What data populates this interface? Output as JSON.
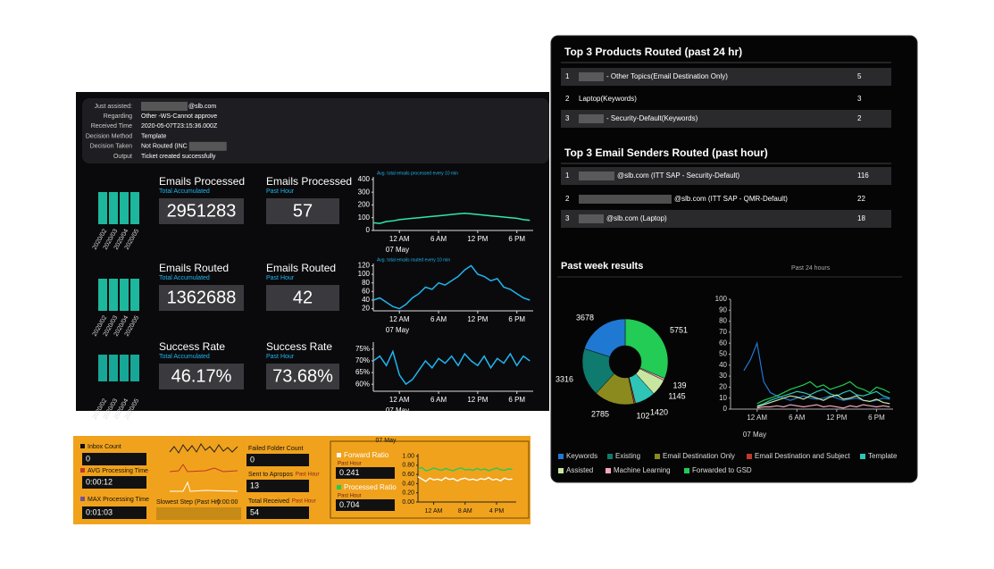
{
  "info": {
    "rows": [
      {
        "label": "Just assisted:",
        "value": "@slb.com"
      },
      {
        "label": "Regarding",
        "value": "Other -WS-Cannot approve"
      },
      {
        "label": "Received Time",
        "value": "2020-05-07T23:15:36.000Z"
      },
      {
        "label": "Decision Method",
        "value": "Template"
      },
      {
        "label": "Decision Taken",
        "value": "Not Routed (INC"
      },
      {
        "label": "Output",
        "value": "Ticket created successfully"
      }
    ]
  },
  "bar_dates": [
    "2020/02",
    "2020/03",
    "2020/04",
    "2020/05"
  ],
  "kpis": [
    {
      "title": "Emails Processed",
      "subtitle": "Total Accumulated",
      "value": "2951283"
    },
    {
      "title": "Emails Processed",
      "subtitle": "Past Hour",
      "value": "57"
    },
    {
      "title": "Emails Routed",
      "subtitle": "Total Accumulated",
      "value": "1362688"
    },
    {
      "title": "Emails Routed",
      "subtitle": "Past Hour",
      "value": "42"
    },
    {
      "title": "Success Rate",
      "subtitle": "Total Accumulated",
      "value": "46.17%"
    },
    {
      "title": "Success Rate",
      "subtitle": "Past Hour",
      "value": "73.68%"
    }
  ],
  "mini_charts": [
    {
      "type": "line",
      "legend": "Avg. total emails processed every 10 min",
      "date_label": "07 May",
      "x": [
        -4,
        -3,
        -2,
        -1,
        0,
        1,
        2,
        3,
        4,
        5,
        6,
        7,
        8,
        9,
        10,
        11,
        12,
        13,
        14,
        15,
        16,
        17,
        18,
        19,
        20
      ],
      "xlim": [
        -4,
        20.5
      ],
      "xticks": [
        {
          "value": 0,
          "label": "12 AM"
        },
        {
          "value": 6,
          "label": "6 AM"
        },
        {
          "value": 12,
          "label": "12 PM"
        },
        {
          "value": 18,
          "label": "6 PM"
        }
      ],
      "ylim": [
        0,
        420
      ],
      "yticks": [
        0,
        100,
        200,
        300,
        400
      ],
      "series": [
        {
          "color": "#2ee6b0",
          "values": [
            60,
            55,
            70,
            75,
            85,
            90,
            95,
            100,
            105,
            110,
            115,
            120,
            125,
            130,
            135,
            130,
            125,
            120,
            115,
            110,
            105,
            100,
            95,
            85,
            80
          ]
        }
      ]
    },
    {
      "type": "line",
      "legend": "Avg. total emails routed every 10 min",
      "date_label": "07 May",
      "x": [
        -4,
        -3,
        -2,
        -1,
        0,
        1,
        2,
        3,
        4,
        5,
        6,
        7,
        8,
        9,
        10,
        11,
        12,
        13,
        14,
        15,
        16,
        17,
        18,
        19,
        20
      ],
      "xlim": [
        -4,
        20.5
      ],
      "xticks": [
        {
          "value": 0,
          "label": "12 AM"
        },
        {
          "value": 6,
          "label": "6 AM"
        },
        {
          "value": 12,
          "label": "12 PM"
        },
        {
          "value": 18,
          "label": "6 PM"
        }
      ],
      "ylim": [
        15,
        125
      ],
      "yticks": [
        20,
        40,
        60,
        80,
        100,
        120
      ],
      "series": [
        {
          "color": "#1fb5f0",
          "values": [
            40,
            45,
            35,
            25,
            20,
            30,
            45,
            55,
            70,
            65,
            80,
            75,
            85,
            95,
            110,
            120,
            100,
            95,
            85,
            90,
            70,
            65,
            55,
            45,
            40
          ]
        }
      ]
    },
    {
      "type": "line",
      "date_label": "07 May",
      "x": [
        -4,
        -3,
        -2,
        -1,
        0,
        1,
        2,
        3,
        4,
        5,
        6,
        7,
        8,
        9,
        10,
        11,
        12,
        13,
        14,
        15,
        16,
        17,
        18,
        19,
        20
      ],
      "xlim": [
        -4,
        20.5
      ],
      "xticks": [
        {
          "value": 0,
          "label": "12 AM"
        },
        {
          "value": 6,
          "label": "6 AM"
        },
        {
          "value": 12,
          "label": "12 PM"
        },
        {
          "value": 18,
          "label": "6 PM"
        }
      ],
      "ylim": [
        57,
        78
      ],
      "yticks": [
        {
          "value": 60,
          "label": "60%"
        },
        {
          "value": 65,
          "label": "65%"
        },
        {
          "value": 70,
          "label": "70%"
        },
        {
          "value": 75,
          "label": "75%"
        }
      ],
      "series": [
        {
          "color": "#1fb5f0",
          "values": [
            70,
            72,
            68,
            74,
            64,
            60,
            62,
            66,
            70,
            67,
            71,
            69,
            72,
            68,
            73,
            70,
            68,
            72,
            67,
            71,
            69,
            73,
            68,
            72,
            70
          ]
        }
      ]
    }
  ],
  "top_products": {
    "title": "Top 3 Products Routed (past 24 hr)",
    "rows": [
      {
        "rank": "1",
        "name": "- Other Topics(Email Destination Only)",
        "value": "5"
      },
      {
        "rank": "2",
        "name": "Laptop(Keywords)",
        "value": "3"
      },
      {
        "rank": "3",
        "name": "- Security-Default(Keywords)",
        "value": "2"
      }
    ]
  },
  "top_senders": {
    "title": "Top 3 Email Senders Routed (past hour)",
    "rows": [
      {
        "rank": "1",
        "name": "@slb.com (ITT SAP - Security-Default)",
        "value": "116"
      },
      {
        "rank": "2",
        "name": "@slb.com (ITT SAP - QMR-Default)",
        "value": "22"
      },
      {
        "rank": "3",
        "name": "@slb.com (Laptop)",
        "value": "18"
      }
    ]
  },
  "past_week": {
    "title": "Past week results",
    "subtitle": "Past 24 hours",
    "donut": {
      "type": "pie",
      "categories": [
        "Keywords",
        "Existing",
        "Email Destination Only",
        "Email Destination and Subject",
        "Template",
        "Assisted",
        "Machine Learning",
        "Forwarded to GSD"
      ],
      "values": [
        3678,
        3316,
        2785,
        102,
        1420,
        1145,
        139,
        5751
      ],
      "colors": [
        "#1f78d1",
        "#0f7a6e",
        "#8a8a1f",
        "#c0392b",
        "#2ec4b6",
        "#c8e6a0",
        "#f4a6c0",
        "#22cc55"
      ]
    },
    "trend": {
      "type": "line",
      "date_label": "07 May",
      "x": [
        -4,
        -3,
        -2,
        -1,
        0,
        1,
        2,
        3,
        4,
        5,
        6,
        7,
        8,
        9,
        10,
        11,
        12,
        13,
        14,
        15,
        16,
        17,
        18,
        19,
        20
      ],
      "xlim": [
        -4,
        20.5
      ],
      "xticks": [
        {
          "value": 0,
          "label": "12 AM"
        },
        {
          "value": 6,
          "label": "6 AM"
        },
        {
          "value": 12,
          "label": "12 PM"
        },
        {
          "value": 18,
          "label": "6 PM"
        }
      ],
      "ylim": [
        0,
        100
      ],
      "yticks": [
        0,
        10,
        20,
        30,
        40,
        50,
        60,
        70,
        80,
        90,
        100
      ],
      "series": [
        {
          "color": "#1f78d1",
          "values": [
            null,
            null,
            35,
            45,
            60,
            25,
            15,
            12,
            10,
            8,
            10,
            12,
            10,
            9,
            10,
            12,
            10,
            8,
            9,
            10,
            8,
            7,
            8,
            10,
            9
          ]
        },
        {
          "color": "#22cc55",
          "values": [
            null,
            null,
            null,
            null,
            5,
            8,
            10,
            12,
            15,
            18,
            20,
            22,
            25,
            20,
            22,
            18,
            20,
            22,
            25,
            20,
            18,
            15,
            20,
            18,
            15
          ]
        },
        {
          "color": "#2ec4b6",
          "values": [
            null,
            null,
            null,
            null,
            3,
            5,
            8,
            10,
            12,
            14,
            16,
            15,
            13,
            16,
            18,
            14,
            12,
            15,
            17,
            13,
            12,
            14,
            16,
            12,
            10
          ]
        },
        {
          "color": "#c8e6a0",
          "values": [
            null,
            null,
            null,
            null,
            2,
            4,
            6,
            8,
            10,
            12,
            11,
            9,
            12,
            10,
            8,
            11,
            13,
            9,
            10,
            12,
            8,
            7,
            9,
            6,
            5
          ]
        },
        {
          "color": "#f4a6c0",
          "values": [
            null,
            null,
            null,
            null,
            1,
            2,
            2,
            3,
            2,
            4,
            3,
            2,
            3,
            4,
            2,
            3,
            2,
            1,
            3,
            2,
            4,
            3,
            2,
            3,
            2
          ]
        }
      ]
    }
  },
  "status": {
    "inbox": {
      "label": "Inbox Count",
      "value": "0"
    },
    "avg": {
      "label": "AVG Processing Time",
      "value": "0:00:12"
    },
    "max": {
      "label": "MAX Processing Time",
      "value": "0:01:03"
    },
    "slowest": {
      "label": "Slowest Step (Past Hr)",
      "value": "0:00:00"
    },
    "failed": {
      "label": "Failed Folder Count",
      "value": "0"
    },
    "sent": {
      "label": "Sent to Apropos",
      "period": "Past Hour",
      "value": "13"
    },
    "received": {
      "label": "Total Received",
      "period": "Past Hour",
      "value": "54"
    },
    "forward": {
      "label": "Forward Ratio",
      "period": "Past Hour",
      "value": "0.241"
    },
    "processed": {
      "label": "Processed Ratio",
      "period": "Past Hour",
      "value": "0.704"
    },
    "ratio_chart": {
      "type": "line",
      "date_label": "07 May",
      "x": [
        -4,
        -3,
        -2,
        -1,
        0,
        1,
        2,
        3,
        4,
        5,
        6,
        7,
        8,
        9,
        10,
        11,
        12,
        13,
        14,
        15,
        16,
        17,
        18,
        19,
        20
      ],
      "xlim": [
        -4,
        21
      ],
      "xticks": [
        {
          "value": 0,
          "label": "12 AM"
        },
        {
          "value": 8,
          "label": "8 AM"
        },
        {
          "value": 16,
          "label": "4 PM"
        }
      ],
      "ylim": [
        0,
        1.05
      ],
      "yticks": [
        {
          "value": 0,
          "label": "0.00"
        },
        {
          "value": 0.2,
          "label": "0.20"
        },
        {
          "value": 0.4,
          "label": "0.40"
        },
        {
          "value": 0.6,
          "label": "0.60"
        },
        {
          "value": 0.8,
          "label": "0.80"
        },
        {
          "value": 1,
          "label": "1.00"
        }
      ],
      "series": [
        {
          "color": "#22cc55",
          "values": [
            0.72,
            0.75,
            0.68,
            0.7,
            0.74,
            0.71,
            0.69,
            0.73,
            0.7,
            0.68,
            0.72,
            0.74,
            0.7,
            0.71,
            0.69,
            0.73,
            0.7,
            0.72,
            0.68,
            0.71,
            0.74,
            0.7,
            0.69,
            0.72,
            0.71
          ]
        },
        {
          "color": "#ffffff",
          "values": [
            0.55,
            0.5,
            0.45,
            0.52,
            0.48,
            0.5,
            0.47,
            0.53,
            0.49,
            0.51,
            0.46,
            0.5,
            0.52,
            0.48,
            0.5,
            0.47,
            0.51,
            0.49,
            0.53,
            0.48,
            0.5,
            0.46,
            0.52,
            0.49,
            0.5
          ]
        }
      ]
    }
  }
}
